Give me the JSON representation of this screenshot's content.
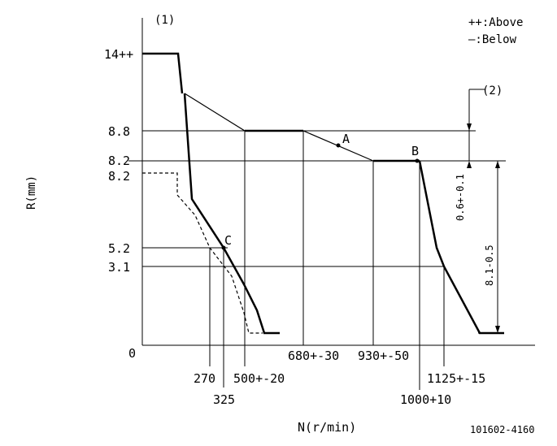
{
  "header": {
    "curve_index": "(1)",
    "legend_above": "++:Above",
    "legend_below": "—:Below"
  },
  "axes": {
    "y_label": "R(mm)",
    "x_label": "N(r/min)",
    "origin": "0"
  },
  "y_ticks": [
    "14++",
    "8.8",
    "8.2",
    "8.2",
    "5.2",
    "3.1"
  ],
  "x_ticks": [
    "270",
    "325",
    "500+-20",
    "680+-30",
    "930+-50",
    "1000+10",
    "1125+-15"
  ],
  "points": [
    "A",
    "B",
    "C"
  ],
  "dimensions": {
    "ref_index": "(2)",
    "dim_small": "0.6+-0.1",
    "dim_large": "8.1-0.5"
  },
  "footer": {
    "code": "101602-4160"
  }
}
